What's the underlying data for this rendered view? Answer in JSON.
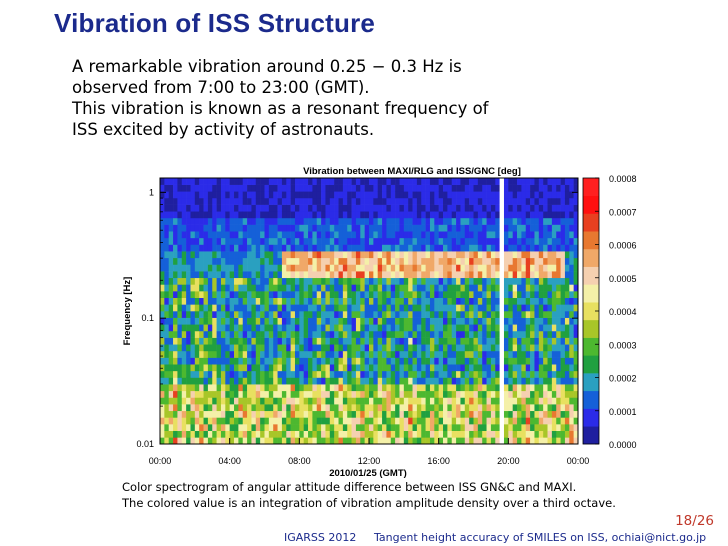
{
  "slide": {
    "title": "Vibration of ISS Structure",
    "body_lines": [
      "A remarkable vibration around 0.25 − 0.3 Hz is",
      "observed from 7:00 to 23:00 (GMT).",
      "This vibration is known as a resonant frequency of",
      "ISS excited by activity of astronauts."
    ],
    "caption_lines": [
      "Color spectrogram of angular attitude difference between ISS GN&C and MAXI.",
      "The colored value is an integration of vibration amplitude density over a third octave."
    ],
    "page_number": "18/26",
    "footer_left": "IGARSS 2012",
    "footer_right": "Tangent height accuracy of SMILES on ISS, ochiai@nict.go.jp"
  },
  "chart_data": {
    "type": "heatmap",
    "title": "Vibration between MAXI/RLG and ISS/GNC [deg]",
    "xlabel": "2010/01/25 (GMT)",
    "ylabel": "Frequency [Hz]",
    "x_ticks": [
      "00:00",
      "04:00",
      "08:00",
      "12:00",
      "16:00",
      "20:00",
      "00:00"
    ],
    "x_range_hours": [
      0,
      24
    ],
    "y_scale": "log",
    "y_ticks": [
      "1",
      "0.1",
      "0.01"
    ],
    "y_range": [
      0.01,
      1.3
    ],
    "colorbar": {
      "range": [
        0,
        0.0008
      ],
      "ticks": [
        "0.0008",
        "0.0007",
        "0.0006",
        "0.0005",
        "0.0004",
        "0.0003",
        "0.0002",
        "0.0001",
        "0.0000"
      ],
      "colors": [
        "#1f1f9f",
        "#2b2be8",
        "#1560d8",
        "#2aa0c0",
        "#20a040",
        "#4db830",
        "#a8c628",
        "#e8e060",
        "#f4f0a8",
        "#f5d0b0",
        "#f0a868",
        "#e87830",
        "#e84020",
        "#ff1010",
        "#ff2020"
      ]
    },
    "resonance_band_hz": [
      0.25,
      0.3
    ],
    "resonance_time": "7:00 to 23:00"
  }
}
